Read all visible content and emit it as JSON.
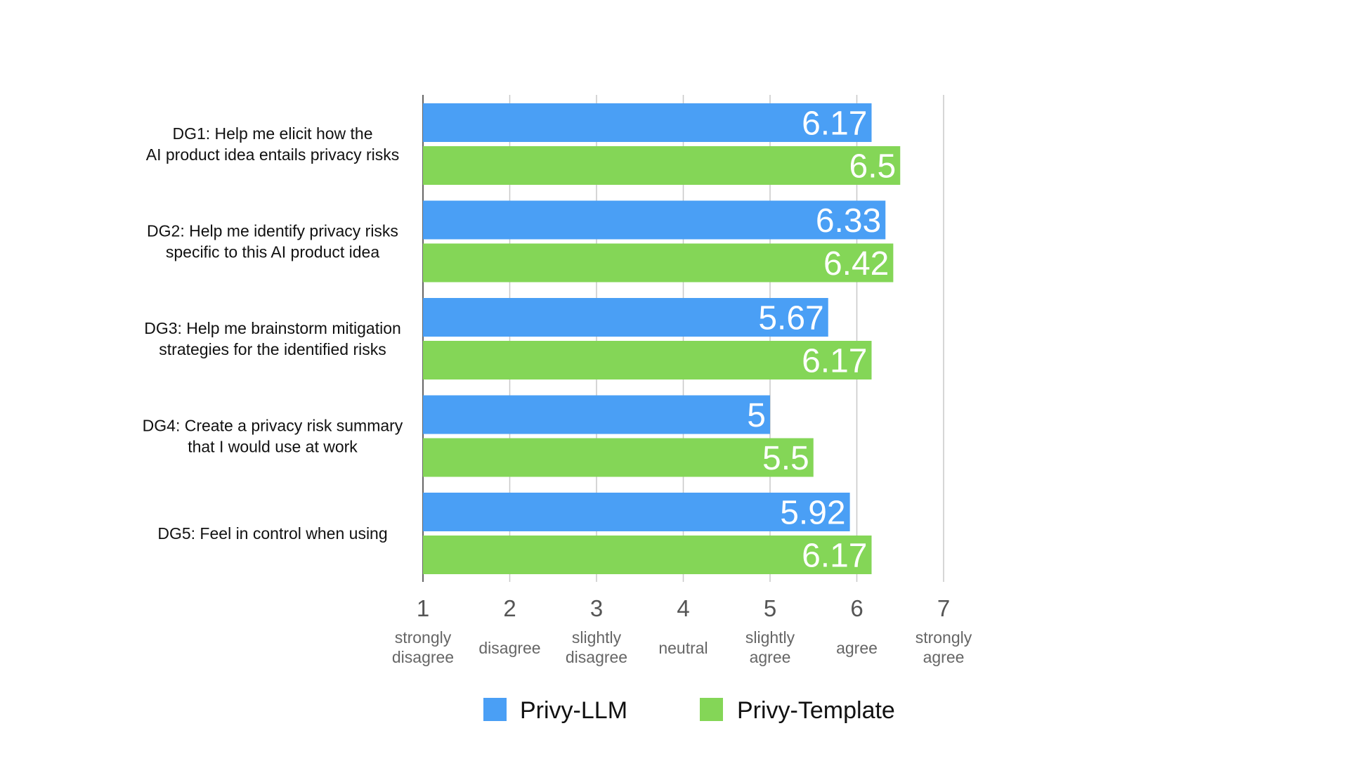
{
  "chart_data": {
    "type": "bar",
    "orientation": "horizontal",
    "title": "",
    "xlabel": "",
    "ylabel": "",
    "xlim": [
      1,
      7
    ],
    "grid": true,
    "legend_position": "bottom",
    "categories": [
      [
        "DG1: Help me elicit how the",
        "AI product idea entails privacy risks"
      ],
      [
        "DG2: Help me identify privacy risks",
        "specific to this AI product idea"
      ],
      [
        "DG3: Help me brainstorm mitigation",
        "strategies for the identified risks"
      ],
      [
        "DG4: Create a privacy risk summary",
        "that I would use at work"
      ],
      [
        "DG5: Feel in control when using"
      ]
    ],
    "series": [
      {
        "name": "Privy-LLM",
        "color": "#4A9FF5",
        "values": [
          6.17,
          6.33,
          5.67,
          5,
          5.92
        ],
        "labels": [
          "6.17",
          "6.33",
          "5.67",
          "5",
          "5.92"
        ]
      },
      {
        "name": "Privy-Template",
        "color": "#84D657",
        "values": [
          6.5,
          6.42,
          6.17,
          5.5,
          6.17
        ],
        "labels": [
          "6.5",
          "6.42",
          "6.17",
          "5.5",
          "6.17"
        ]
      }
    ],
    "ticks": [
      {
        "value": 1,
        "number": "1",
        "desc": [
          "strongly",
          "disagree"
        ]
      },
      {
        "value": 2,
        "number": "2",
        "desc": [
          "disagree"
        ]
      },
      {
        "value": 3,
        "number": "3",
        "desc": [
          "slightly",
          "disagree"
        ]
      },
      {
        "value": 4,
        "number": "4",
        "desc": [
          "neutral"
        ]
      },
      {
        "value": 5,
        "number": "5",
        "desc": [
          "slightly",
          "agree"
        ]
      },
      {
        "value": 6,
        "number": "6",
        "desc": [
          "agree"
        ]
      },
      {
        "value": 7,
        "number": "7",
        "desc": [
          "strongly",
          "agree"
        ]
      }
    ]
  }
}
